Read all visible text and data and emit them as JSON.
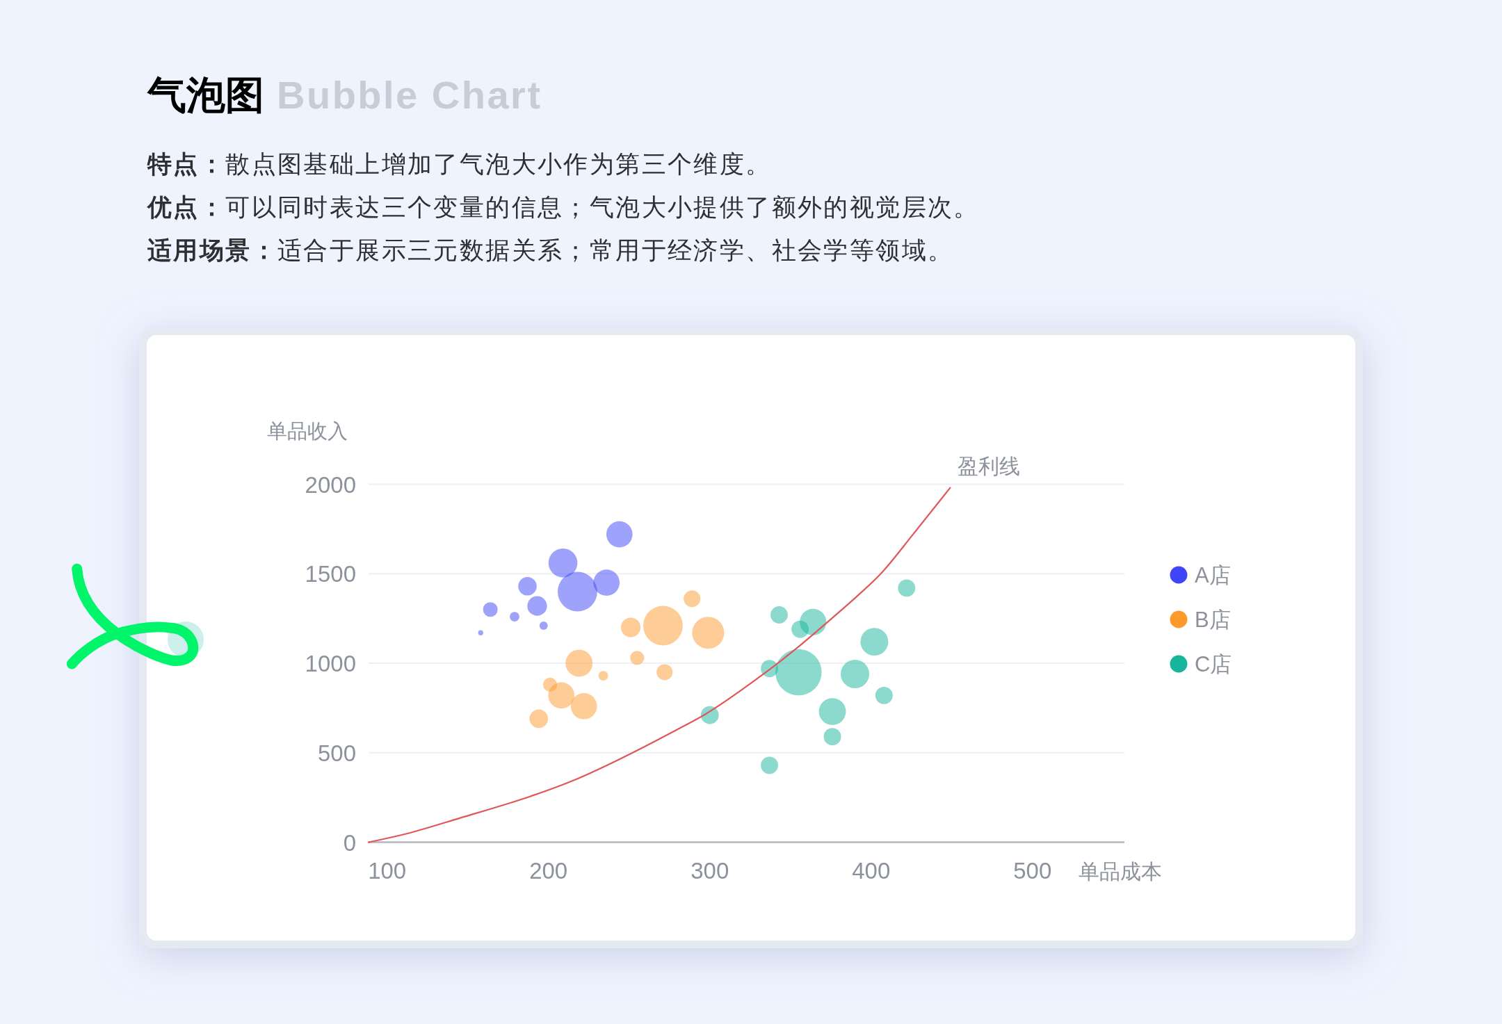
{
  "chart_data": {
    "type": "bubble",
    "title": "气泡图",
    "subtitle": "Bubble Chart",
    "annotations": [
      "特点：散点图基础上增加了气泡大小作为第三个维度。",
      "优点：可以同时表达三个变量的信息；气泡大小提供了额外的视觉层次。",
      "适用场景：适合于展示三元数据关系；常用于经济学、社会学等领域。"
    ],
    "xlabel": "单品成本",
    "ylabel": "单品收入",
    "xlim": [
      88.5,
      557
    ],
    "xticks": [
      100,
      200,
      300,
      400,
      500
    ],
    "ylim": [
      0,
      2000
    ],
    "yticks": [
      0,
      500,
      1000,
      1500,
      2000
    ],
    "grid": "y",
    "legend": "right",
    "series": [
      {
        "name": "A店",
        "color": "#4046f7",
        "x": [
          244,
          209,
          218,
          236,
          187,
          193,
          164,
          179,
          197,
          158
        ],
        "values": [
          1720,
          1560,
          1400,
          1450,
          1430,
          1320,
          1300,
          1260,
          1210,
          1170
        ],
        "sizes": [
          0.32,
          0.39,
          0.73,
          0.32,
          0.16,
          0.18,
          0.1,
          0.043,
          0.032,
          0.012
        ]
      },
      {
        "name": "B店",
        "color": "#fd9a2d",
        "x": [
          271,
          299,
          289,
          251,
          255,
          272,
          219,
          234,
          201,
          208,
          222,
          194
        ],
        "values": [
          1210,
          1170,
          1360,
          1200,
          1030,
          950,
          1000,
          930,
          880,
          820,
          760,
          690
        ],
        "sizes": [
          0.73,
          0.48,
          0.13,
          0.18,
          0.092,
          0.12,
          0.34,
          0.043,
          0.092,
          0.32,
          0.32,
          0.16
        ]
      },
      {
        "name": "C店",
        "color": "#17b59c",
        "x": [
          300,
          355,
          337,
          343,
          364,
          356,
          402,
          390,
          408,
          376,
          376,
          337,
          422
        ],
        "values": [
          710,
          950,
          970,
          1270,
          1230,
          1190,
          1120,
          940,
          820,
          730,
          590,
          430,
          1420
        ],
        "sizes": [
          0.15,
          1,
          0.14,
          0.14,
          0.33,
          0.14,
          0.36,
          0.38,
          0.14,
          0.34,
          0.14,
          0.14,
          0.14
        ]
      },
      {
        "name": "盈利线",
        "type": "line",
        "color": "#e0575a",
        "x": [
          88.5,
          113,
          145,
          185,
          214,
          242,
          283,
          299,
          337,
          356,
          373,
          392,
          407,
          426,
          449
        ],
        "values": [
          0,
          50,
          135,
          245,
          340,
          455,
          645,
          725,
          965,
          1100,
          1230,
          1380,
          1510,
          1720,
          1980
        ]
      }
    ]
  }
}
